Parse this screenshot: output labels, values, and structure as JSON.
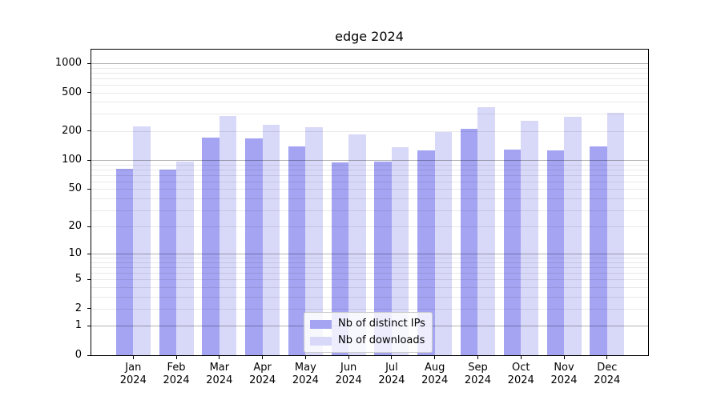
{
  "chart_data": {
    "type": "bar",
    "title": "edge 2024",
    "categories": [
      "Jan",
      "Feb",
      "Mar",
      "Apr",
      "May",
      "Jun",
      "Jul",
      "Aug",
      "Sep",
      "Oct",
      "Nov",
      "Dec"
    ],
    "x_year_label": "2024",
    "series": [
      {
        "name": "Nb of distinct IPs",
        "color": "#a4a4f2",
        "values": [
          81,
          79,
          171,
          168,
          138,
          95,
          96,
          125,
          213,
          128,
          126,
          140
        ]
      },
      {
        "name": "Nb of downloads",
        "color": "#d8d8f8",
        "values": [
          224,
          97,
          287,
          233,
          219,
          184,
          135,
          196,
          354,
          255,
          280,
          310
        ]
      }
    ],
    "y_axis": {
      "scale": "log1p",
      "tick_labels": [
        0,
        1,
        2,
        5,
        10,
        20,
        50,
        100,
        200,
        500,
        1000
      ],
      "major_gridlines": [
        1,
        10,
        100,
        1000
      ],
      "minor_gridline_decades": [
        1,
        10,
        100
      ],
      "range_top_value": 1400
    },
    "legend": {
      "position": "lower center"
    },
    "grid": "on",
    "colors": {
      "background": "#ffffff",
      "spine": "#000000",
      "major_grid": "rgba(0,0,0,0.30)",
      "minor_grid": "rgba(0,0,0,0.085)",
      "text": "#000000"
    }
  }
}
